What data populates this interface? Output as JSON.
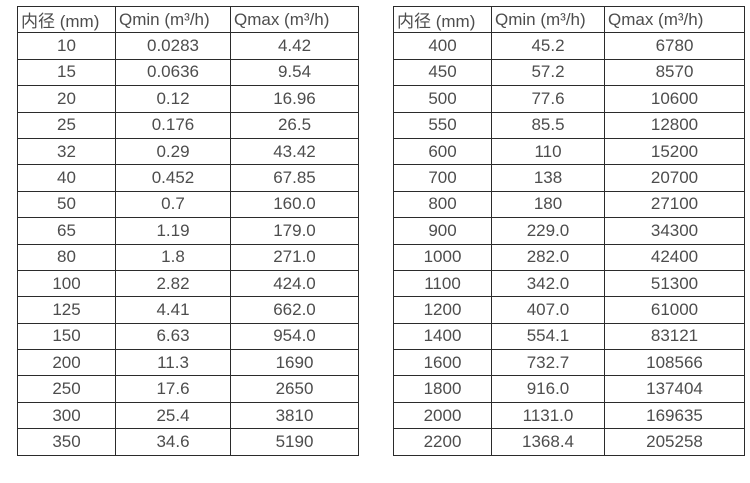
{
  "colors": {
    "text": "#4d4d4d",
    "border": "#2b2b2b",
    "background": "#ffffff"
  },
  "tables": [
    {
      "name": "small-diameter-flow-rates",
      "headers": [
        "内径 (mm)",
        "Qmin (m³/h)",
        "Qmax (m³/h)"
      ],
      "rows": [
        [
          "10",
          "0.0283",
          "4.42"
        ],
        [
          "15",
          "0.0636",
          "9.54"
        ],
        [
          "20",
          "0.12",
          "16.96"
        ],
        [
          "25",
          "0.176",
          "26.5"
        ],
        [
          "32",
          "0.29",
          "43.42"
        ],
        [
          "40",
          "0.452",
          "67.85"
        ],
        [
          "50",
          "0.7",
          "160.0"
        ],
        [
          "65",
          "1.19",
          "179.0"
        ],
        [
          "80",
          "1.8",
          "271.0"
        ],
        [
          "100",
          "2.82",
          "424.0"
        ],
        [
          "125",
          "4.41",
          "662.0"
        ],
        [
          "150",
          "6.63",
          "954.0"
        ],
        [
          "200",
          "11.3",
          "1690"
        ],
        [
          "250",
          "17.6",
          "2650"
        ],
        [
          "300",
          "25.4",
          "3810"
        ],
        [
          "350",
          "34.6",
          "5190"
        ]
      ]
    },
    {
      "name": "large-diameter-flow-rates",
      "headers": [
        "内径 (mm)",
        "Qmin (m³/h)",
        "Qmax (m³/h)"
      ],
      "rows": [
        [
          "400",
          "45.2",
          "6780"
        ],
        [
          "450",
          "57.2",
          "8570"
        ],
        [
          "500",
          "77.6",
          "10600"
        ],
        [
          "550",
          "85.5",
          "12800"
        ],
        [
          "600",
          "110",
          "15200"
        ],
        [
          "700",
          "138",
          "20700"
        ],
        [
          "800",
          "180",
          "27100"
        ],
        [
          "900",
          "229.0",
          "34300"
        ],
        [
          "1000",
          "282.0",
          "42400"
        ],
        [
          "1100",
          "342.0",
          "51300"
        ],
        [
          "1200",
          "407.0",
          "61000"
        ],
        [
          "1400",
          "554.1",
          "83121"
        ],
        [
          "1600",
          "732.7",
          "108566"
        ],
        [
          "1800",
          "916.0",
          "137404"
        ],
        [
          "2000",
          "1131.0",
          "169635"
        ],
        [
          "2200",
          "1368.4",
          "205258"
        ]
      ]
    }
  ]
}
